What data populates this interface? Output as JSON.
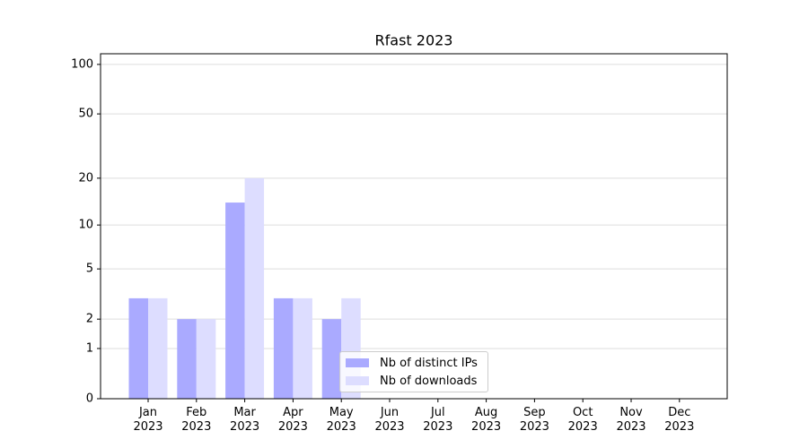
{
  "chart_data": {
    "type": "bar",
    "title": "Rfast 2023",
    "categories": [
      "Jan\n2023",
      "Feb\n2023",
      "Mar\n2023",
      "Apr\n2023",
      "May\n2023",
      "Jun\n2023",
      "Jul\n2023",
      "Aug\n2023",
      "Sep\n2023",
      "Oct\n2023",
      "Nov\n2023",
      "Dec\n2023"
    ],
    "series": [
      {
        "name": "Nb of distinct IPs",
        "color": "#aaaaff",
        "values": [
          3,
          2,
          14,
          3,
          2,
          0,
          0,
          0,
          0,
          0,
          0,
          0
        ]
      },
      {
        "name": "Nb of downloads",
        "color": "#ddddff",
        "values": [
          3,
          2,
          20,
          3,
          3,
          0,
          0,
          0,
          0,
          0,
          0,
          0
        ]
      }
    ],
    "yscale": "log1p",
    "ylim": [
      0,
      116
    ],
    "yticks": [
      0,
      1,
      2,
      5,
      10,
      20,
      50,
      100
    ],
    "grid": true,
    "legend": "lower center"
  }
}
